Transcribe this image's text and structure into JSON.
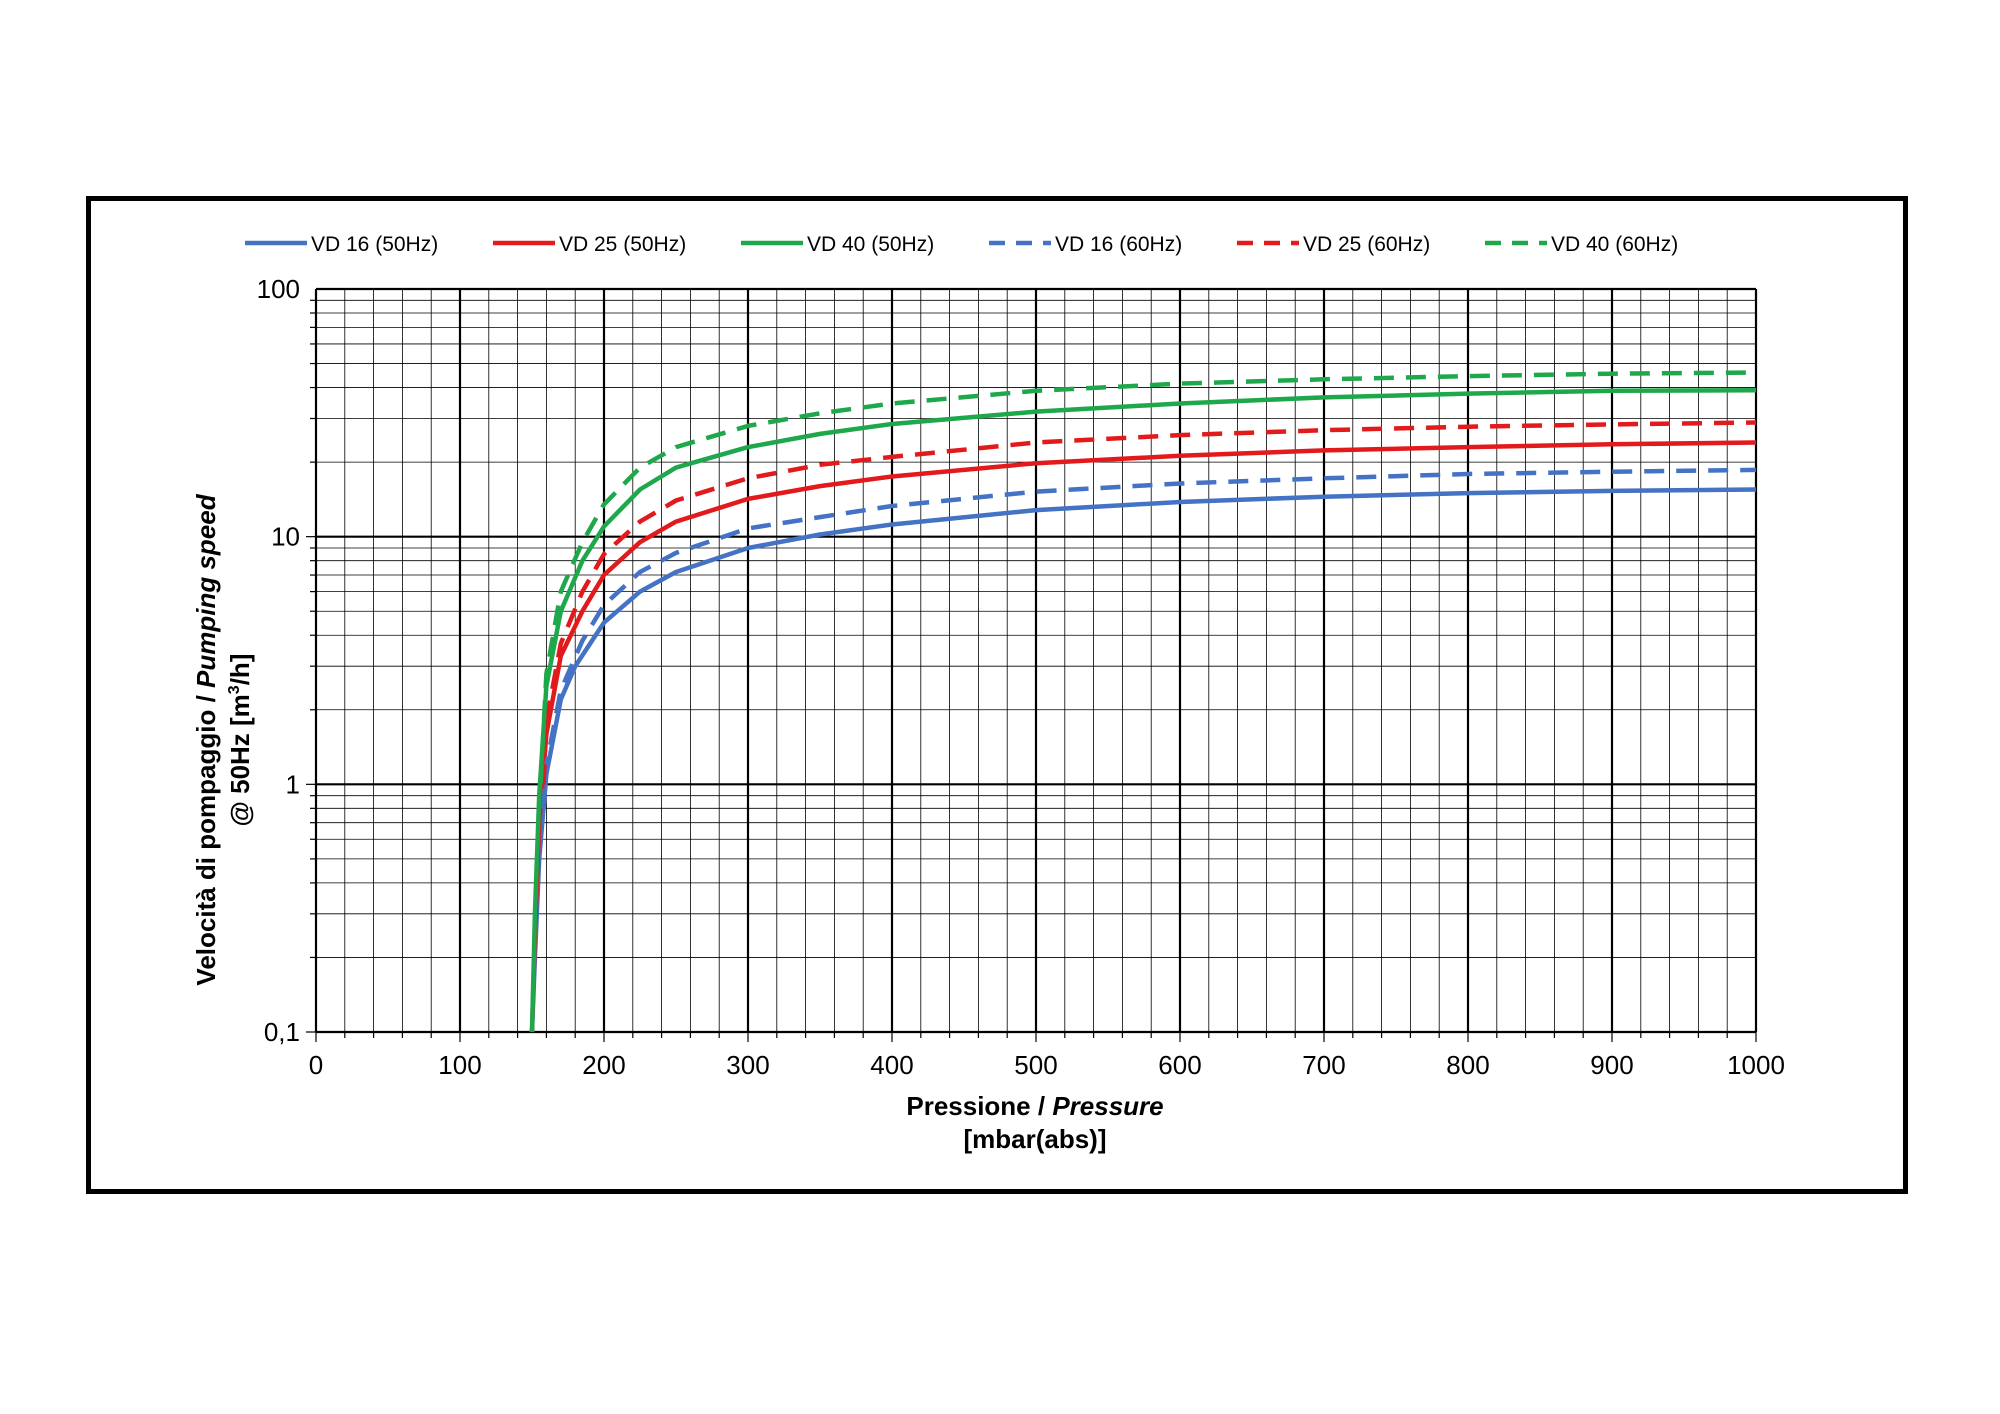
{
  "chart_data": {
    "type": "line",
    "x_scale": "linear",
    "y_scale": "log",
    "xlim": [
      0,
      1000
    ],
    "ylim": [
      0.1,
      100
    ],
    "x_ticks": [
      "0",
      "100",
      "200",
      "300",
      "400",
      "500",
      "600",
      "700",
      "800",
      "900",
      "1000"
    ],
    "y_ticks": [
      "0,1",
      "1",
      "10",
      "100"
    ],
    "grid": true,
    "legend_position": "top",
    "xlabel": {
      "line1_plain": "Pressione / ",
      "line1_italic": "Pressure",
      "line2": "[mbar(abs)]"
    },
    "ylabel": {
      "line1_plain": "Velocità di pompaggio / ",
      "line1_italic": "Pumping speed",
      "line2_prefix": "@ 50Hz [m",
      "line2_sup": "3",
      "line2_suffix": "/h]"
    },
    "series": [
      {
        "name": "VD 16 (50Hz)",
        "color": "#4472c4",
        "dash": false,
        "points": [
          [
            150,
            0.1
          ],
          [
            152,
            0.2
          ],
          [
            155,
            0.5
          ],
          [
            160,
            1.1
          ],
          [
            170,
            2.2
          ],
          [
            180,
            3.0
          ],
          [
            200,
            4.5
          ],
          [
            225,
            6.0
          ],
          [
            250,
            7.2
          ],
          [
            300,
            9.0
          ],
          [
            350,
            10.2
          ],
          [
            400,
            11.2
          ],
          [
            500,
            12.8
          ],
          [
            600,
            13.8
          ],
          [
            700,
            14.5
          ],
          [
            800,
            15.0
          ],
          [
            900,
            15.3
          ],
          [
            1000,
            15.5
          ]
        ]
      },
      {
        "name": "VD 25 (50Hz)",
        "color": "#e31a1c",
        "dash": false,
        "points": [
          [
            150,
            0.1
          ],
          [
            152,
            0.25
          ],
          [
            155,
            0.7
          ],
          [
            160,
            1.6
          ],
          [
            170,
            3.3
          ],
          [
            185,
            5.0
          ],
          [
            200,
            7.0
          ],
          [
            225,
            9.5
          ],
          [
            250,
            11.5
          ],
          [
            300,
            14.2
          ],
          [
            350,
            16.0
          ],
          [
            400,
            17.5
          ],
          [
            500,
            19.8
          ],
          [
            600,
            21.2
          ],
          [
            700,
            22.3
          ],
          [
            800,
            23.0
          ],
          [
            900,
            23.6
          ],
          [
            1000,
            24.0
          ]
        ]
      },
      {
        "name": "VD 40 (50Hz)",
        "color": "#1ea84b",
        "dash": false,
        "points": [
          [
            150,
            0.1
          ],
          [
            152,
            0.3
          ],
          [
            155,
            0.9
          ],
          [
            160,
            2.5
          ],
          [
            170,
            5.0
          ],
          [
            185,
            8.0
          ],
          [
            200,
            11.0
          ],
          [
            225,
            15.5
          ],
          [
            250,
            19.0
          ],
          [
            300,
            23.0
          ],
          [
            350,
            26.0
          ],
          [
            400,
            28.5
          ],
          [
            500,
            32.0
          ],
          [
            600,
            34.5
          ],
          [
            700,
            36.5
          ],
          [
            800,
            37.8
          ],
          [
            900,
            38.8
          ],
          [
            1000,
            39.0
          ]
        ]
      },
      {
        "name": "VD 16 (60Hz)",
        "color": "#4472c4",
        "dash": true,
        "points": [
          [
            158,
            0.8
          ],
          [
            160,
            1.2
          ],
          [
            170,
            2.4
          ],
          [
            185,
            3.8
          ],
          [
            200,
            5.3
          ],
          [
            225,
            7.2
          ],
          [
            250,
            8.6
          ],
          [
            300,
            10.8
          ],
          [
            350,
            12.0
          ],
          [
            400,
            13.3
          ],
          [
            500,
            15.2
          ],
          [
            600,
            16.4
          ],
          [
            700,
            17.2
          ],
          [
            800,
            17.9
          ],
          [
            900,
            18.3
          ],
          [
            1000,
            18.6
          ]
        ]
      },
      {
        "name": "VD 25 (60Hz)",
        "color": "#e31a1c",
        "dash": true,
        "points": [
          [
            158,
            1.0
          ],
          [
            160,
            1.8
          ],
          [
            170,
            3.7
          ],
          [
            185,
            6.0
          ],
          [
            200,
            8.5
          ],
          [
            225,
            11.5
          ],
          [
            250,
            14.0
          ],
          [
            300,
            17.2
          ],
          [
            350,
            19.5
          ],
          [
            400,
            21.0
          ],
          [
            500,
            24.0
          ],
          [
            600,
            25.7
          ],
          [
            700,
            26.9
          ],
          [
            800,
            27.8
          ],
          [
            900,
            28.4
          ],
          [
            1000,
            28.9
          ]
        ]
      },
      {
        "name": "VD 40 (60Hz)",
        "color": "#1ea84b",
        "dash": true,
        "points": [
          [
            156,
            1.0
          ],
          [
            160,
            2.8
          ],
          [
            170,
            6.0
          ],
          [
            185,
            9.5
          ],
          [
            200,
            13.5
          ],
          [
            225,
            19.0
          ],
          [
            250,
            23.0
          ],
          [
            300,
            28.0
          ],
          [
            350,
            31.5
          ],
          [
            400,
            34.5
          ],
          [
            500,
            38.8
          ],
          [
            600,
            41.5
          ],
          [
            700,
            43.2
          ],
          [
            800,
            44.5
          ],
          [
            900,
            45.5
          ],
          [
            1000,
            46.0
          ]
        ]
      }
    ]
  }
}
